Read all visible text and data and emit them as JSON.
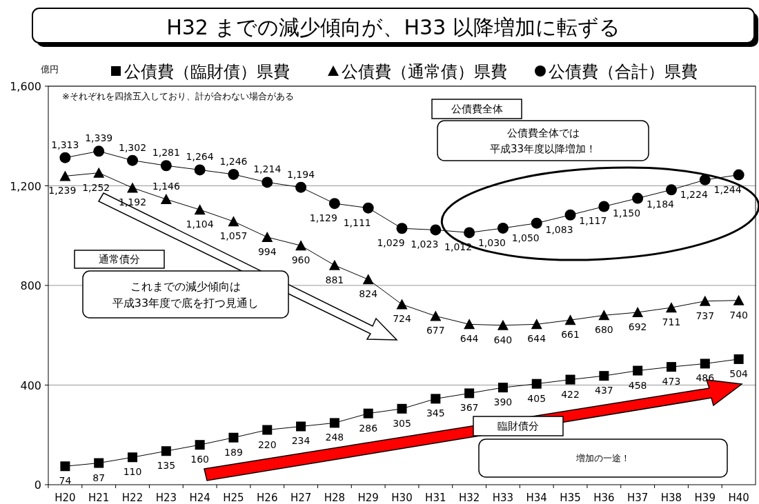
{
  "chart_data": {
    "type": "line",
    "title": "H32 までの減少傾向が、H33 以降増加に転ずる",
    "ylabel": "億円",
    "categories": [
      "H20",
      "H21",
      "H22",
      "H23",
      "H24",
      "H25",
      "H26",
      "H27",
      "H28",
      "H29",
      "H30",
      "H31",
      "H32",
      "H33",
      "H34",
      "H35",
      "H36",
      "H37",
      "H38",
      "H39",
      "H40"
    ],
    "series": [
      {
        "name": "公債費（臨財債）県費",
        "color": "#000000",
        "marker": "square",
        "values": [
          74,
          87,
          110,
          135,
          160,
          189,
          220,
          234,
          248,
          286,
          305,
          345,
          367,
          390,
          405,
          422,
          437,
          458,
          473,
          486,
          504
        ],
        "value_labels": [
          "74",
          "87",
          "110",
          "135",
          "160",
          "189",
          "220",
          "234",
          "248",
          "286",
          "305",
          "345",
          "367",
          "390",
          "405",
          "422",
          "437",
          "458",
          "473",
          "486",
          "504"
        ]
      },
      {
        "name": "公債費（通常債）県費",
        "color": "#000000",
        "marker": "triangle",
        "values": [
          1239,
          1252,
          1192,
          1146,
          1104,
          1057,
          994,
          960,
          881,
          824,
          724,
          677,
          644,
          640,
          644,
          661,
          680,
          692,
          711,
          737,
          740
        ],
        "value_labels": [
          "1,239",
          "1,252",
          "1,192",
          "1,146",
          "1,104",
          "1,057",
          "994",
          "960",
          "881",
          "824",
          "724",
          "677",
          "644",
          "640",
          "644",
          "661",
          "680",
          "692",
          "711",
          "737",
          "740"
        ]
      },
      {
        "name": "公債費（合計）県費",
        "color": "#000000",
        "marker": "circle",
        "values": [
          1313,
          1339,
          1302,
          1281,
          1264,
          1246,
          1214,
          1194,
          1129,
          1111,
          1029,
          1023,
          1012,
          1030,
          1050,
          1083,
          1117,
          1150,
          1184,
          1224,
          1244
        ],
        "value_labels": [
          "1,313",
          "1,339",
          "1,302",
          "1,281",
          "1,264",
          "1,246",
          "1,214",
          "1,194",
          "1,129",
          "1,111",
          "1,029",
          "1,023",
          "1,012",
          "1,030",
          "1,050",
          "1,083",
          "1,117",
          "1,150",
          "1,184",
          "1,224",
          "1,244"
        ]
      }
    ],
    "ylim": [
      0,
      1600
    ],
    "yticks": [
      0,
      400,
      800,
      {
        "value": 1200,
        "label": "1,200"
      },
      {
        "value": 1600,
        "label": "1,600"
      }
    ],
    "grid": "y",
    "legend": "top",
    "annotations": [
      "※それぞれを四捨五入しており、計が合わない場合がある",
      "公債費全体",
      "公債費全体では",
      "平成33年度以降増加！",
      "通常債分",
      "これまでの減少傾向は",
      "平成33年度で底を打つ見通し",
      "臨財債分",
      "増加の一途！"
    ]
  }
}
